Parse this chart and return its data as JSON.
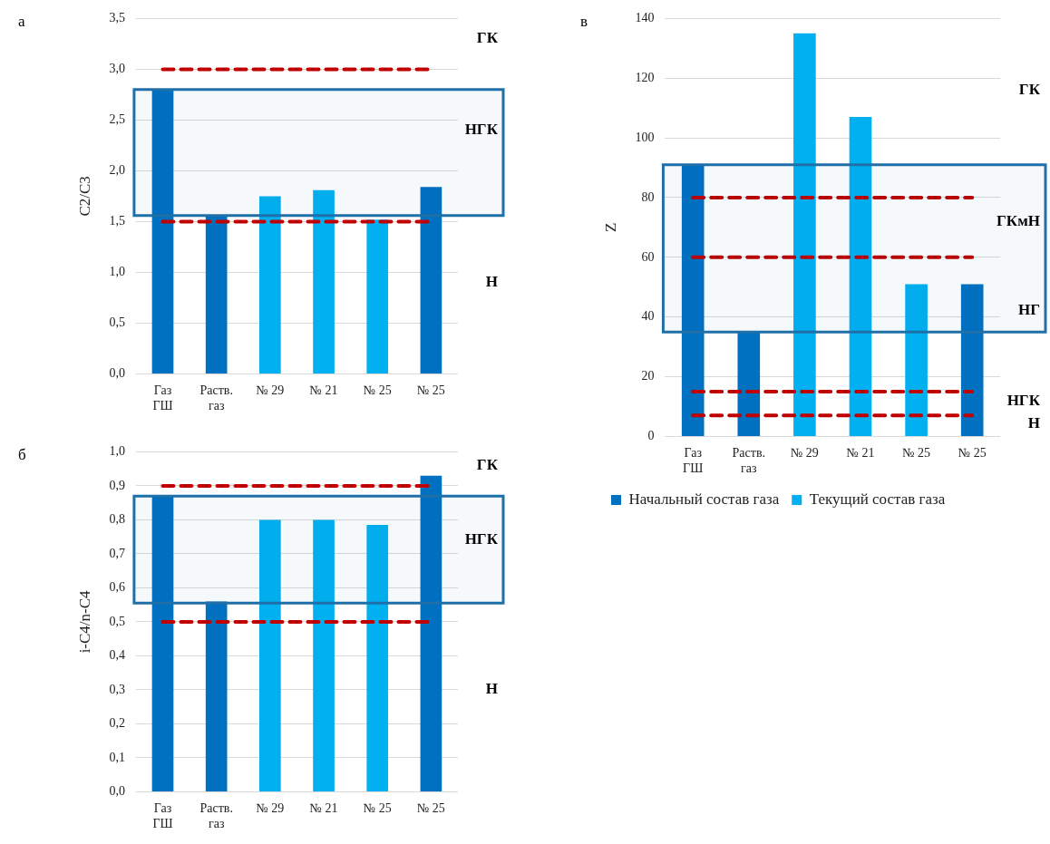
{
  "chart_data": [
    {
      "type": "bar",
      "title": "а",
      "ylabel": "C2/C3",
      "categories": [
        "Газ\nГШ",
        "Раств.\nгаз",
        "№ 29",
        "№ 21",
        "№ 25",
        "№ 25"
      ],
      "series": [
        {
          "color": "#0070c0",
          "values": [
            2.8,
            1.55,
            null,
            null,
            null,
            1.84
          ]
        },
        {
          "color": "#00b0f0",
          "values": [
            null,
            null,
            1.75,
            1.81,
            1.52,
            null
          ]
        }
      ],
      "ylim": [
        0,
        3.5
      ],
      "yticks": [
        {
          "value": 0,
          "label": "0,0"
        },
        {
          "value": 0.5,
          "label": "0,5"
        },
        {
          "value": 1,
          "label": "1,0"
        },
        {
          "value": 1.5,
          "label": "1,5"
        },
        {
          "value": 2,
          "label": "2,0"
        },
        {
          "value": 2.5,
          "label": "2,5"
        },
        {
          "value": 3,
          "label": "3,0"
        },
        {
          "value": 3.5,
          "label": "3,5"
        }
      ],
      "grid": "y",
      "legend": false,
      "ref_lines": [
        {
          "axis": "y",
          "value": 3,
          "color": "#c00000",
          "line_style": "dashed"
        },
        {
          "axis": "y",
          "value": 1.5,
          "color": "#c00000",
          "line_style": "dashed"
        }
      ],
      "bands": [
        {
          "axis": "y",
          "from": 1.56,
          "to": 2.8,
          "color": "#1f6fa8"
        }
      ],
      "annotations": [
        "ГК",
        "НГК",
        "Н"
      ]
    },
    {
      "type": "bar",
      "title": "в",
      "ylabel": "Z",
      "categories": [
        "Газ\nГШ",
        "Раств.\nгаз",
        "№ 29",
        "№ 21",
        "№ 25",
        "№ 25"
      ],
      "series": [
        {
          "name": "Начальный состав газа",
          "color": "#0070c0",
          "values": [
            91,
            35,
            null,
            null,
            null,
            51
          ]
        },
        {
          "name": "Текущий состав газа",
          "color": "#00b0f0",
          "values": [
            null,
            null,
            135,
            107,
            51,
            null
          ]
        }
      ],
      "ylim": [
        0,
        140
      ],
      "yticks": [
        0,
        20,
        40,
        60,
        80,
        100,
        120,
        140
      ],
      "grid": "y",
      "legend": "bottom",
      "ref_lines": [
        {
          "axis": "y",
          "value": 80,
          "color": "#c00000",
          "line_style": "dashed"
        },
        {
          "axis": "y",
          "value": 60,
          "color": "#c00000",
          "line_style": "dashed"
        },
        {
          "axis": "y",
          "value": 15,
          "color": "#c00000",
          "line_style": "dashed"
        },
        {
          "axis": "y",
          "value": 7,
          "color": "#c00000",
          "line_style": "dashed"
        }
      ],
      "bands": [
        {
          "axis": "y",
          "from": 35,
          "to": 91,
          "color": "#1f6fa8"
        }
      ],
      "annotations": [
        "ГК",
        "ГКмН",
        "НГ",
        "НГК",
        "Н"
      ]
    },
    {
      "type": "bar",
      "title": "б",
      "ylabel": "i-C4/n-C4",
      "categories": [
        "Газ\nГШ",
        "Раств.\nгаз",
        "№ 29",
        "№ 21",
        "№ 25",
        "№ 25"
      ],
      "series": [
        {
          "color": "#0070c0",
          "values": [
            0.87,
            0.56,
            null,
            null,
            null,
            0.93
          ]
        },
        {
          "color": "#00b0f0",
          "values": [
            null,
            null,
            0.8,
            0.8,
            0.785,
            null
          ]
        }
      ],
      "ylim": [
        0,
        1
      ],
      "yticks": [
        {
          "value": 0,
          "label": "0,0"
        },
        {
          "value": 0.1,
          "label": "0,1"
        },
        {
          "value": 0.2,
          "label": "0,2"
        },
        {
          "value": 0.3,
          "label": "0,3"
        },
        {
          "value": 0.4,
          "label": "0,4"
        },
        {
          "value": 0.5,
          "label": "0,5"
        },
        {
          "value": 0.6,
          "label": "0,6"
        },
        {
          "value": 0.7,
          "label": "0,7"
        },
        {
          "value": 0.8,
          "label": "0,8"
        },
        {
          "value": 0.9,
          "label": "0,9"
        },
        {
          "value": 1,
          "label": "1,0"
        }
      ],
      "grid": "y",
      "legend": false,
      "ref_lines": [
        {
          "axis": "y",
          "value": 0.9,
          "color": "#c00000",
          "line_style": "dashed"
        },
        {
          "axis": "y",
          "value": 0.5,
          "color": "#c00000",
          "line_style": "dashed"
        }
      ],
      "bands": [
        {
          "axis": "y",
          "from": 0.555,
          "to": 0.87,
          "color": "#1f6fa8"
        }
      ],
      "annotations": [
        "ГК",
        "НГК",
        "Н"
      ]
    }
  ]
}
